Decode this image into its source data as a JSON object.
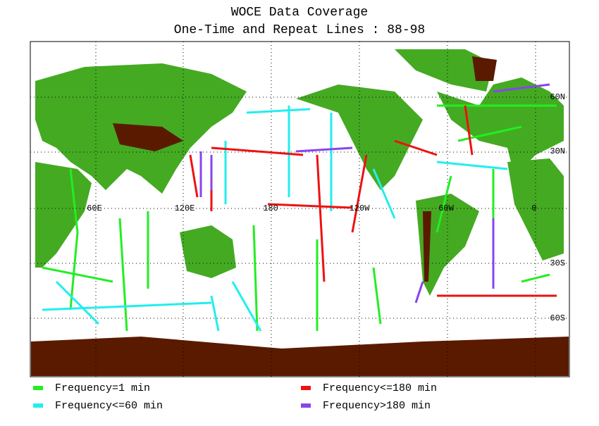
{
  "title": [
    "WOCE Data Coverage",
    "One-Time and Repeat Lines : 88-98"
  ],
  "map": {
    "longitude_labels": [
      "60E",
      "120E",
      "180",
      "120W",
      "60W",
      "0"
    ],
    "latitude_labels": [
      "60N",
      "30N",
      "30S",
      "60S"
    ]
  },
  "legend": [
    {
      "label": "Frequency=1 min",
      "color": "#22ee22"
    },
    {
      "label": "Frequency<=60 min",
      "color": "#22eeee"
    },
    {
      "label": "Frequency<=180 min",
      "color": "#ee1111"
    },
    {
      "label": "Frequency>180 min",
      "color": "#8844ee"
    }
  ]
}
